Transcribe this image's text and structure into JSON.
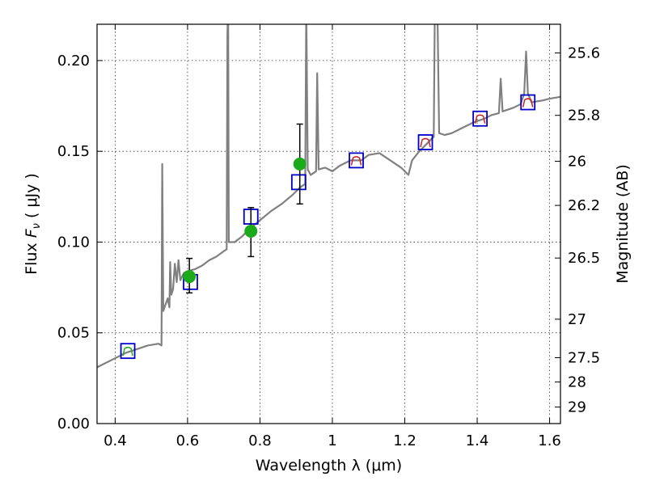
{
  "chart_data": {
    "type": "line",
    "xlabel": "Wavelength  λ (μm)",
    "ylabel": "Flux  F_ν  ( μJy )",
    "ylabel_parts": {
      "prefix": "Flux  ",
      "var": "F",
      "sub": "ν",
      "unit": "  ( μJy )"
    },
    "ylabel_right": "Magnitude (AB)",
    "xlim": [
      0.35,
      1.63
    ],
    "ylim": [
      0.0,
      0.22
    ],
    "grid": true,
    "x_ticks": [
      0.4,
      0.6,
      0.8,
      1.0,
      1.2,
      1.4,
      1.6
    ],
    "x_tick_labels": [
      "0.4",
      "0.6",
      "0.8",
      "1",
      "1.2",
      "1.4",
      "1.6"
    ],
    "y_ticks": [
      0.0,
      0.05,
      0.1,
      0.15,
      0.2
    ],
    "y_tick_labels": [
      "0.00",
      "0.05",
      "0.10",
      "0.15",
      "0.20"
    ],
    "right_ticks": [
      {
        "label": "25.6",
        "flux": 0.2042
      },
      {
        "label": "25.8",
        "flux": 0.1698
      },
      {
        "label": "26",
        "flux": 0.1445
      },
      {
        "label": "26.2",
        "flux": 0.1202
      },
      {
        "label": "26.5",
        "flux": 0.0912
      },
      {
        "label": "27",
        "flux": 0.0575
      },
      {
        "label": "27.5",
        "flux": 0.0363
      },
      {
        "label": "28",
        "flux": 0.0229
      },
      {
        "label": "29",
        "flux": 0.0091
      }
    ],
    "series": [
      {
        "kind": "spectrum",
        "color": "#808080",
        "points": [
          [
            0.35,
            0.031
          ],
          [
            0.37,
            0.033
          ],
          [
            0.4,
            0.036
          ],
          [
            0.43,
            0.039
          ],
          [
            0.46,
            0.041
          ],
          [
            0.49,
            0.043
          ],
          [
            0.52,
            0.044
          ],
          [
            0.528,
            0.043
          ],
          [
            0.53,
            0.143
          ],
          [
            0.533,
            0.062
          ],
          [
            0.545,
            0.069
          ],
          [
            0.55,
            0.064
          ],
          [
            0.552,
            0.089
          ],
          [
            0.555,
            0.071
          ],
          [
            0.56,
            0.074
          ],
          [
            0.565,
            0.088
          ],
          [
            0.57,
            0.078
          ],
          [
            0.575,
            0.09
          ],
          [
            0.58,
            0.079
          ],
          [
            0.59,
            0.083
          ],
          [
            0.6,
            0.084
          ],
          [
            0.62,
            0.085
          ],
          [
            0.64,
            0.087
          ],
          [
            0.66,
            0.09
          ],
          [
            0.68,
            0.092
          ],
          [
            0.7,
            0.095
          ],
          [
            0.708,
            0.096
          ],
          [
            0.71,
            0.215
          ],
          [
            0.712,
            0.23
          ],
          [
            0.714,
            0.1
          ],
          [
            0.73,
            0.1
          ],
          [
            0.75,
            0.103
          ],
          [
            0.77,
            0.107
          ],
          [
            0.8,
            0.112
          ],
          [
            0.83,
            0.117
          ],
          [
            0.86,
            0.121
          ],
          [
            0.89,
            0.126
          ],
          [
            0.91,
            0.13
          ],
          [
            0.925,
            0.132
          ],
          [
            0.928,
            0.23
          ],
          [
            0.932,
            0.14
          ],
          [
            0.94,
            0.137
          ],
          [
            0.955,
            0.139
          ],
          [
            0.958,
            0.193
          ],
          [
            0.962,
            0.14
          ],
          [
            0.98,
            0.141
          ],
          [
            1.0,
            0.139
          ],
          [
            1.02,
            0.142
          ],
          [
            1.05,
            0.145
          ],
          [
            1.08,
            0.145
          ],
          [
            1.1,
            0.148
          ],
          [
            1.13,
            0.149
          ],
          [
            1.16,
            0.145
          ],
          [
            1.19,
            0.141
          ],
          [
            1.21,
            0.137
          ],
          [
            1.22,
            0.145
          ],
          [
            1.24,
            0.15
          ],
          [
            1.26,
            0.154
          ],
          [
            1.28,
            0.158
          ],
          [
            1.283,
            0.23
          ],
          [
            1.29,
            0.23
          ],
          [
            1.295,
            0.16
          ],
          [
            1.31,
            0.159
          ],
          [
            1.33,
            0.16
          ],
          [
            1.36,
            0.163
          ],
          [
            1.39,
            0.166
          ],
          [
            1.42,
            0.168
          ],
          [
            1.44,
            0.17
          ],
          [
            1.46,
            0.171
          ],
          [
            1.465,
            0.19
          ],
          [
            1.47,
            0.172
          ],
          [
            1.5,
            0.174
          ],
          [
            1.52,
            0.176
          ],
          [
            1.53,
            0.182
          ],
          [
            1.535,
            0.205
          ],
          [
            1.54,
            0.182
          ],
          [
            1.55,
            0.177
          ],
          [
            1.58,
            0.178
          ],
          [
            1.6,
            0.179
          ],
          [
            1.63,
            0.18
          ]
        ]
      },
      {
        "kind": "photometry",
        "marker": "circle",
        "color": "#1aaa1a",
        "points": [
          {
            "x": 0.605,
            "y": 0.081,
            "err_low": 0.072,
            "err_high": 0.091
          },
          {
            "x": 0.775,
            "y": 0.106,
            "err_low": 0.092,
            "err_high": 0.119
          },
          {
            "x": 0.91,
            "y": 0.143,
            "err_low": 0.121,
            "err_high": 0.165
          }
        ]
      },
      {
        "kind": "model_photometry",
        "marker": "square",
        "color": "#0000cc",
        "points": [
          {
            "x": 0.435,
            "y": 0.04
          },
          {
            "x": 0.608,
            "y": 0.078
          },
          {
            "x": 0.775,
            "y": 0.114
          },
          {
            "x": 0.907,
            "y": 0.133
          },
          {
            "x": 1.066,
            "y": 0.145
          },
          {
            "x": 1.257,
            "y": 0.155
          },
          {
            "x": 1.408,
            "y": 0.168
          },
          {
            "x": 1.54,
            "y": 0.177
          }
        ]
      },
      {
        "kind": "filter_curves",
        "color": "#cc2222",
        "points": [
          {
            "x": 1.066,
            "y": 0.145
          },
          {
            "x": 1.257,
            "y": 0.155
          },
          {
            "x": 1.408,
            "y": 0.168
          },
          {
            "x": 1.54,
            "y": 0.177
          }
        ]
      },
      {
        "kind": "filter_curves",
        "color": "#22aa22",
        "points": [
          {
            "x": 0.435,
            "y": 0.04
          }
        ]
      }
    ]
  }
}
